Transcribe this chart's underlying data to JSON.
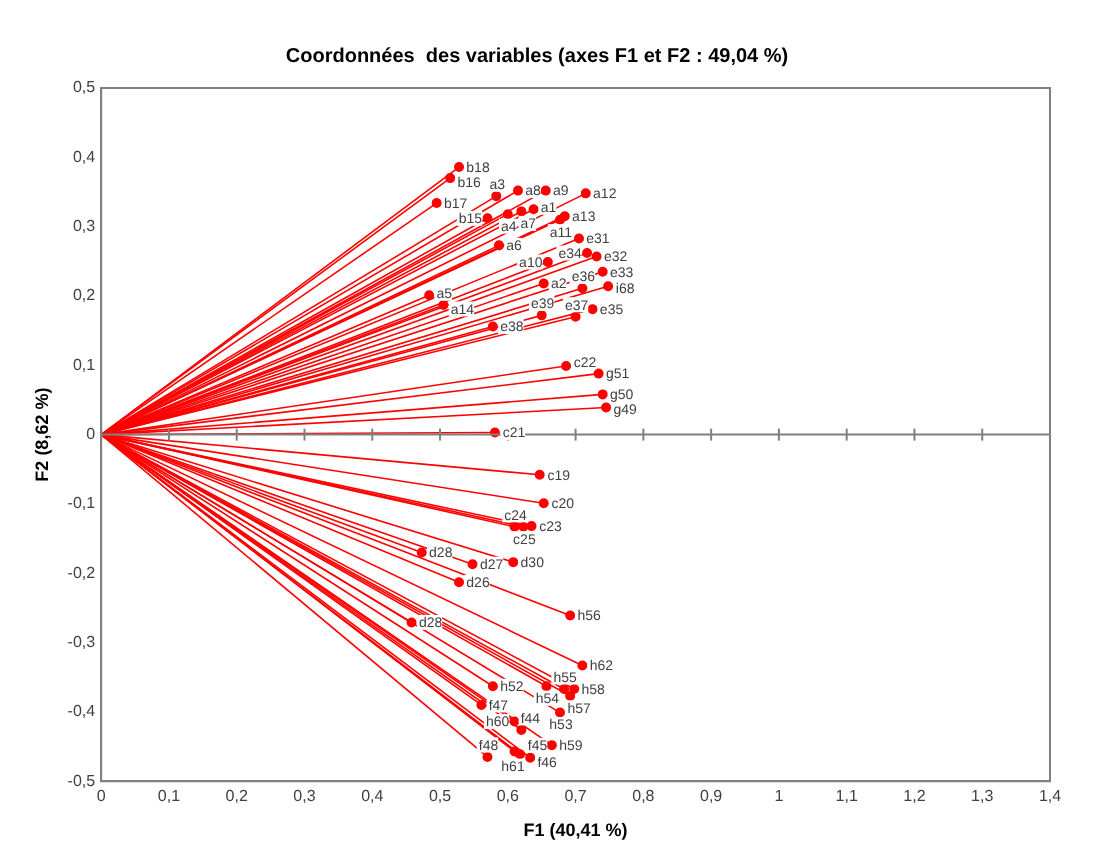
{
  "chart_data": {
    "type": "scatter",
    "title": "Coordonnées  des variables (axes F1 et F2 : 49,04 %)",
    "xlabel": "F1 (40,41 %)",
    "ylabel": "F2 (8,62 %)",
    "xlim": [
      0,
      1.4
    ],
    "xticks": [
      0,
      {
        "value": 0.1,
        "label": "0,1"
      },
      {
        "value": 0.2,
        "label": "0,2"
      },
      {
        "value": 0.3,
        "label": "0,3"
      },
      {
        "value": 0.4,
        "label": "0,4"
      },
      {
        "value": 0.5,
        "label": "0,5"
      },
      {
        "value": 0.6,
        "label": "0,6"
      },
      {
        "value": 0.7,
        "label": "0,7"
      },
      {
        "value": 0.8,
        "label": "0,8"
      },
      {
        "value": 0.9,
        "label": "0,9"
      },
      1,
      {
        "value": 1.1,
        "label": "1,1"
      },
      {
        "value": 1.2,
        "label": "1,2"
      },
      {
        "value": 1.3,
        "label": "1,3"
      },
      {
        "value": 1.4,
        "label": "1,4"
      }
    ],
    "ylim": [
      -0.5,
      0.5
    ],
    "yticks": [
      {
        "value": -0.5,
        "label": "-0,5"
      },
      {
        "value": -0.4,
        "label": "-0,4"
      },
      {
        "value": -0.3,
        "label": "-0,3"
      },
      {
        "value": -0.2,
        "label": "-0,2"
      },
      {
        "value": -0.1,
        "label": "-0,1"
      },
      0,
      {
        "value": 0.1,
        "label": "0,1"
      },
      {
        "value": 0.2,
        "label": "0,2"
      },
      {
        "value": 0.3,
        "label": "0,3"
      },
      {
        "value": 0.4,
        "label": "0,4"
      },
      {
        "value": 0.5,
        "label": "0,5"
      }
    ],
    "grid": false,
    "legend": false,
    "marker": "circle",
    "ref_lines": [
      {
        "axis": "y",
        "value": 0,
        "color": "#808080"
      }
    ],
    "series": [
      {
        "color": "#ff0000",
        "x": [
          0.528,
          0.515,
          0.495,
          0.583,
          0.615,
          0.656,
          0.715,
          0.57,
          0.6,
          0.62,
          0.638,
          0.677,
          0.684,
          0.587,
          0.705,
          0.717,
          0.731,
          0.659,
          0.74,
          0.653,
          0.71,
          0.748,
          0.484,
          0.505,
          0.725,
          0.7,
          0.65,
          0.578,
          0.686,
          0.734,
          0.74,
          0.745,
          0.581,
          0.647,
          0.653,
          0.61,
          0.635,
          0.623,
          0.473,
          0.548,
          0.608,
          0.528,
          0.692,
          0.458,
          0.71,
          0.578,
          0.657,
          0.683,
          0.698,
          0.692,
          0.561,
          0.677,
          0.61,
          0.62,
          0.665,
          0.61,
          0.618,
          0.633,
          0.57
        ],
        "values": [
          0.386,
          0.37,
          0.334,
          0.344,
          0.352,
          0.352,
          0.348,
          0.312,
          0.318,
          0.322,
          0.325,
          0.31,
          0.315,
          0.273,
          0.283,
          0.262,
          0.257,
          0.249,
          0.235,
          0.218,
          0.211,
          0.214,
          0.201,
          0.187,
          0.181,
          0.17,
          0.172,
          0.156,
          0.099,
          0.088,
          0.058,
          0.039,
          0.003,
          -0.058,
          -0.099,
          -0.133,
          -0.132,
          -0.133,
          -0.17,
          -0.187,
          -0.184,
          -0.213,
          -0.261,
          -0.271,
          -0.333,
          -0.363,
          -0.363,
          -0.367,
          -0.367,
          -0.377,
          -0.39,
          -0.401,
          -0.414,
          -0.426,
          -0.448,
          -0.457,
          -0.461,
          -0.466,
          -0.465
        ],
        "value_labels": [
          "b18",
          "b16",
          "b17",
          "a3",
          "a8",
          "a9",
          "a12",
          "b15",
          "a4",
          "a7",
          "a1",
          "a11",
          "a13",
          "a6",
          "e31",
          "e34",
          "e32",
          "a10",
          "e33",
          "a2",
          "e36",
          "i68",
          "a5",
          "a14",
          "e35",
          "e37",
          "e39",
          "e38",
          "c22",
          "g51",
          "g50",
          "g49",
          "c21",
          "c19",
          "c20",
          "c24",
          "c23",
          "c25",
          "d28",
          "d27",
          "d30",
          "d26",
          "h56",
          "d28",
          "h62",
          "h52",
          "h54",
          "h55",
          "h58",
          "h57",
          "f47",
          "h53",
          "h60",
          "f44",
          "h59",
          "f45",
          "h61",
          "f46",
          "f48"
        ]
      }
    ]
  }
}
